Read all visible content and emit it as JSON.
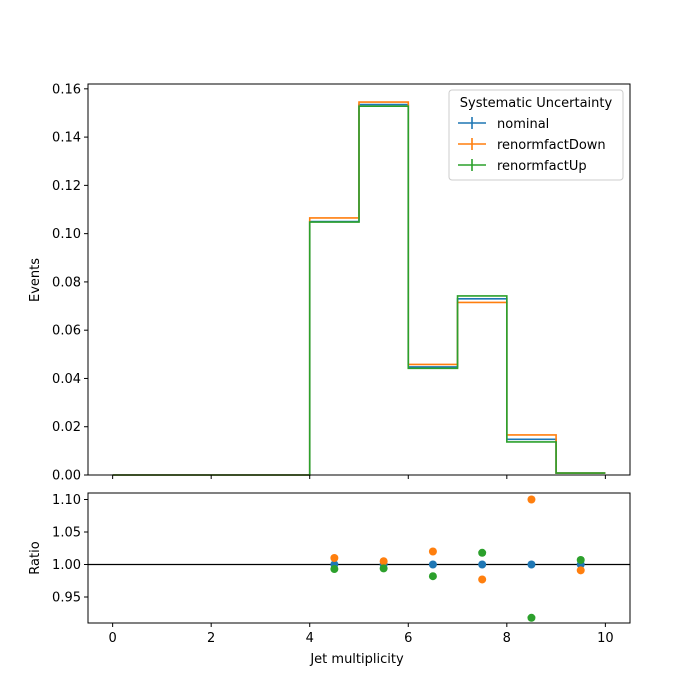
{
  "chart_data": {
    "type": "histogram",
    "xlabel": "Jet multiplicity",
    "xlim": [
      -0.5,
      10.5
    ],
    "xticks": [
      "0",
      "2",
      "4",
      "6",
      "8",
      "10"
    ],
    "bin_edges": [
      0,
      1,
      2,
      3,
      4,
      5,
      6,
      7,
      8,
      9,
      10
    ],
    "top_panel": {
      "ylabel": "Events",
      "ylim": [
        0,
        0.162
      ],
      "yticks": [
        "0.00",
        "0.02",
        "0.04",
        "0.06",
        "0.08",
        "0.10",
        "0.12",
        "0.14",
        "0.16"
      ],
      "legend": {
        "title": "Systematic Uncertainty",
        "placement": "top-right"
      },
      "series": [
        {
          "name": "nominal",
          "color": "#1f77b4",
          "values": [
            0,
            0,
            0,
            0,
            0.105,
            0.1535,
            0.0448,
            0.073,
            0.0148,
            0.0008
          ]
        },
        {
          "name": "renormfactDown",
          "color": "#ff7f0e",
          "values": [
            0,
            0,
            0,
            0,
            0.1065,
            0.1545,
            0.0458,
            0.0715,
            0.0166,
            0.0008
          ]
        },
        {
          "name": "renormfactUp",
          "color": "#2ca02c",
          "values": [
            0,
            0,
            0,
            0,
            0.1048,
            0.1528,
            0.0442,
            0.0742,
            0.0137,
            0.0008
          ]
        }
      ]
    },
    "ratio_panel": {
      "ylabel": "Ratio",
      "ylim": [
        0.91,
        1.11
      ],
      "yticks": [
        "0.95",
        "1.00",
        "1.05",
        "1.10"
      ],
      "reference_line": 1.0,
      "x": [
        4.5,
        5.5,
        6.5,
        7.5,
        8.5,
        9.5
      ],
      "series": [
        {
          "name": "nominal",
          "color": "#1f77b4",
          "values": [
            1.0,
            1.0,
            1.0,
            1.0,
            1.0,
            1.0
          ]
        },
        {
          "name": "renormfactDown",
          "color": "#ff7f0e",
          "values": [
            1.01,
            1.005,
            1.02,
            0.977,
            1.1,
            0.991
          ]
        },
        {
          "name": "renormfactUp",
          "color": "#2ca02c",
          "values": [
            0.993,
            0.994,
            0.982,
            1.018,
            0.918,
            1.007
          ]
        }
      ]
    }
  }
}
